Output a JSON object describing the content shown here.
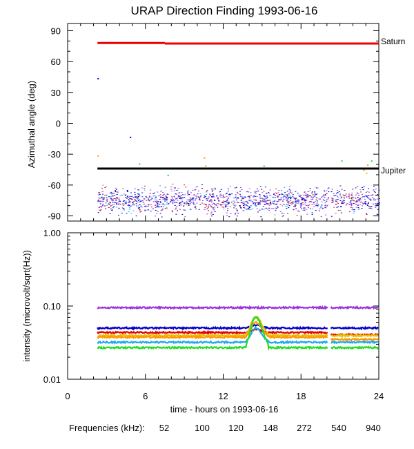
{
  "title": "URAP Direction Finding  1993-06-16",
  "colors": {
    "f52": "#e60000",
    "f100": "#ff9900",
    "f120": "#e6c000",
    "f148": "#22dd22",
    "f272": "#1eaaee",
    "f540": "#0000cc",
    "f940": "#9933dd",
    "saturn": "#ee0000",
    "jupiter": "#000000"
  },
  "chart_data": [
    {
      "type": "scatter",
      "panel": "top",
      "ylabel": "Azimuthal angle (deg)",
      "ylim": [
        -95,
        97
      ],
      "yticks": [
        90,
        60,
        30,
        0,
        -30,
        -60,
        -90
      ],
      "xlim": [
        0,
        24
      ],
      "reference_lines": [
        {
          "name": "Saturn",
          "segments": [
            [
              2.3,
              7.5,
              78
            ],
            [
              7.5,
              24,
              77.5
            ]
          ]
        },
        {
          "name": "Jupiter",
          "segments": [
            [
              2.3,
              24,
              -44
            ]
          ]
        }
      ],
      "scatter_band": {
        "x": [
          2.3,
          24
        ],
        "y_center": -75,
        "y_spread": 6
      },
      "outliers": [
        {
          "x": 2.3,
          "y": 44,
          "series": "540"
        },
        {
          "x": 4.8,
          "y": -13,
          "series": "540"
        },
        {
          "x": 2.3,
          "y": -31,
          "series": "100"
        },
        {
          "x": 5.5,
          "y": -39,
          "series": "148"
        },
        {
          "x": 7.7,
          "y": -50,
          "series": "148"
        },
        {
          "x": 10.5,
          "y": -33,
          "series": "100"
        },
        {
          "x": 10.6,
          "y": -41,
          "series": "100"
        },
        {
          "x": 15.1,
          "y": -41,
          "series": "148"
        },
        {
          "x": 21.1,
          "y": -36,
          "series": "148"
        },
        {
          "x": 22.8,
          "y": -45,
          "series": "100"
        },
        {
          "x": 23.0,
          "y": -48,
          "series": "120"
        },
        {
          "x": 23.4,
          "y": -36,
          "series": "148"
        },
        {
          "x": 23.1,
          "y": -40,
          "series": "100"
        }
      ]
    },
    {
      "type": "line",
      "panel": "bottom",
      "ylabel": "intensity (microvolt/sqrt(Hz))",
      "yscale": "log",
      "ylim": [
        0.01,
        1.0
      ],
      "yticks": [
        "1.00",
        "0.10",
        "0.01"
      ],
      "xlim": [
        0,
        24
      ],
      "xticks": [
        0,
        6,
        12,
        18,
        24
      ],
      "xlabel": "time - hours on 1993-06-16",
      "gap": [
        20.1,
        20.3
      ],
      "series": [
        {
          "name": "940",
          "base": 0.095,
          "peak": 0.095
        },
        {
          "name": "540",
          "base": 0.05,
          "peak": 0.055
        },
        {
          "name": "52",
          "base": 0.0435,
          "peak": 0.048
        },
        {
          "name": "120",
          "base": 0.0395,
          "peak": 0.072
        },
        {
          "name": "100",
          "base": 0.0375,
          "peak": 0.06
        },
        {
          "name": "272",
          "base": 0.032,
          "peak": 0.05
        },
        {
          "name": "148",
          "base": 0.027,
          "peak": 0.07
        }
      ],
      "burst": {
        "x": [
          13.8,
          15.5
        ],
        "peak_x": 14.5
      }
    }
  ],
  "labels": {
    "saturn": "Saturn",
    "jupiter": "Jupiter",
    "freq_label": "Frequencies (kHz):",
    "frequencies": [
      "52",
      "100",
      "120",
      "148",
      "272",
      "540",
      "940"
    ]
  }
}
